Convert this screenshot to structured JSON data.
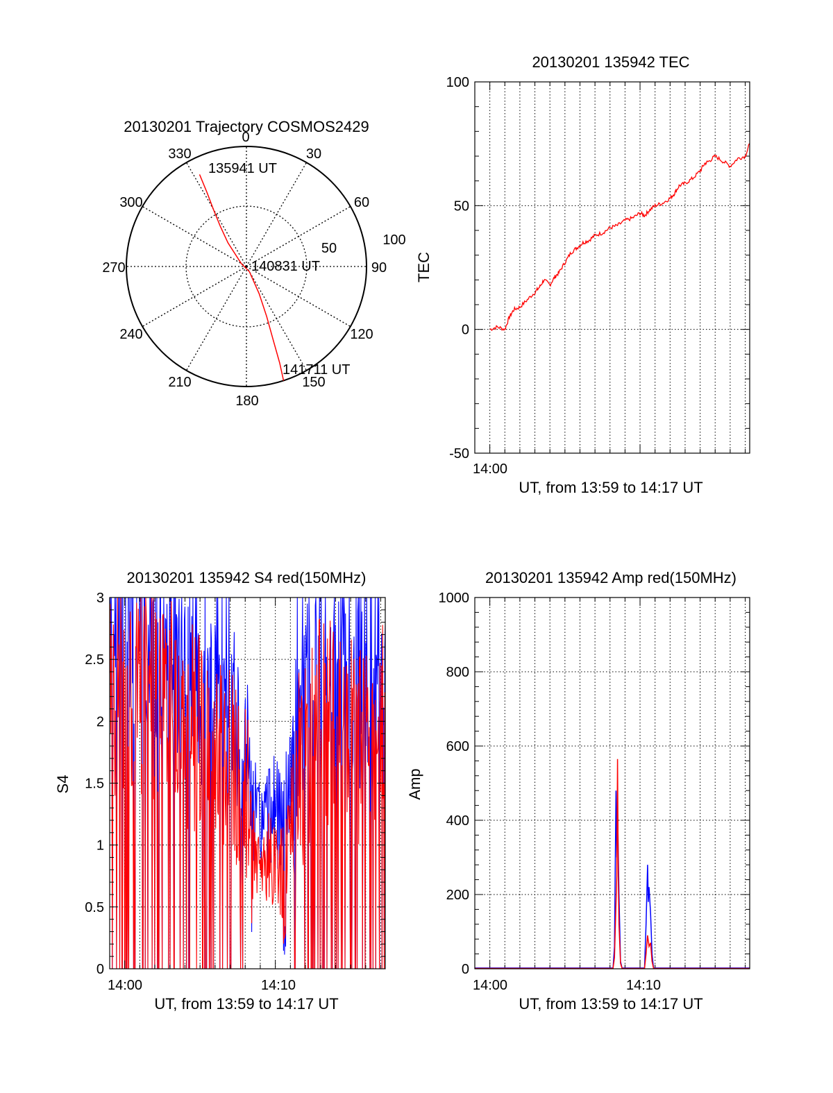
{
  "colors": {
    "red": "#ff0000",
    "blue": "#0000ff",
    "axis": "#000000",
    "grid": "#000000"
  },
  "chart_data": [
    {
      "id": "trajectory",
      "type": "scatter",
      "title": "20130201 Trajectory COSMOS2429",
      "coordinate_system": "polar (azimuth deg, elevation)",
      "azimuth_labels": [
        "0",
        "30",
        "60",
        "90",
        "120",
        "150",
        "180",
        "210",
        "240",
        "270",
        "300",
        "330"
      ],
      "radial_labels": [
        "50",
        "100"
      ],
      "annotations": [
        "135941 UT",
        "140831 UT",
        "141711 UT"
      ],
      "track": {
        "azimuth_deg": [
          333,
          332,
          330,
          327,
          322,
          300,
          150,
          155,
          158,
          160,
          161,
          162
        ],
        "zenith_dist": [
          86,
          70,
          55,
          40,
          25,
          5,
          5,
          25,
          45,
          65,
          85,
          100
        ],
        "color": "red"
      }
    },
    {
      "id": "tec",
      "type": "line",
      "title": "20130201 135942 TEC",
      "xlabel": "UT, from 13:59 to 14:17 UT",
      "ylabel": "TEC",
      "xlim_min": [
        -1,
        17.3
      ],
      "ylim": [
        -50,
        100
      ],
      "xtick_labels": [
        "14:00"
      ],
      "yticks": [
        -50,
        0,
        50,
        100
      ],
      "series": [
        {
          "color": "red",
          "x": [
            0,
            0.5,
            1,
            1.3,
            1.6,
            2,
            2.5,
            3,
            3.3,
            3.6,
            4,
            4.3,
            4.6,
            5,
            5.4,
            5.8,
            6.2,
            6.6,
            7,
            7.5,
            8,
            8.5,
            9,
            9.5,
            10,
            10.3,
            10.6,
            11,
            11.5,
            12,
            12.3,
            12.6,
            13,
            13.5,
            14,
            14.3,
            14.6,
            15,
            15.5,
            16,
            16.5,
            17,
            17.3
          ],
          "y": [
            0,
            1,
            0,
            5,
            8,
            9,
            12,
            15,
            17,
            20,
            18,
            21,
            23,
            27,
            31,
            33,
            35,
            36,
            38,
            39,
            41,
            42,
            44,
            45,
            47,
            46,
            48,
            50,
            51,
            53,
            55,
            58,
            59,
            61,
            64,
            67,
            68,
            70,
            68,
            66,
            69,
            70,
            75
          ]
        }
      ]
    },
    {
      "id": "s4",
      "type": "line",
      "title": "20130201 135942 S4 red(150MHz)",
      "xlabel": "UT, from 13:59 to 14:17 UT",
      "ylabel": "S4",
      "xlim_min": [
        -1,
        17.3
      ],
      "ylim": [
        0,
        3
      ],
      "xtick_labels": [
        "14:00",
        "14:10"
      ],
      "yticks": [
        0,
        0.5,
        1,
        1.5,
        2,
        2.5,
        3
      ],
      "envelope": {
        "x": [
          -1,
          0,
          1,
          2,
          3,
          4,
          5,
          6,
          7,
          8,
          8.5,
          9,
          9.5,
          10,
          10.5,
          11,
          12,
          13,
          14,
          15,
          16,
          17,
          17.3
        ],
        "y": [
          2.5,
          2.6,
          2.5,
          2.4,
          2.4,
          2.2,
          2.1,
          2.0,
          1.9,
          1.6,
          1.2,
          1.0,
          1.1,
          1.2,
          1.0,
          1.5,
          2.0,
          2.2,
          2.3,
          2.1,
          2.0,
          2.1,
          2.2
        ]
      },
      "series": [
        {
          "name": "",
          "color": "blue"
        },
        {
          "name": "",
          "color": "red"
        }
      ]
    },
    {
      "id": "amp",
      "type": "line",
      "title": "20130201 135942 Amp red(150MHz)",
      "xlabel": "UT, from 13:59 to 14:17 UT",
      "ylabel": "Amp",
      "xlim_min": [
        -1,
        17.3
      ],
      "ylim": [
        0,
        1000
      ],
      "xtick_labels": [
        "14:00",
        "14:10"
      ],
      "yticks": [
        0,
        200,
        400,
        600,
        800,
        1000
      ],
      "series": [
        {
          "color": "blue",
          "x": [
            -1,
            8.2,
            8.3,
            8.4,
            8.45,
            8.5,
            8.6,
            8.7,
            8.8,
            10.3,
            10.4,
            10.5,
            10.55,
            10.6,
            10.7,
            10.8,
            10.9,
            17.3
          ],
          "y": [
            2,
            2,
            60,
            480,
            300,
            440,
            200,
            20,
            2,
            2,
            120,
            280,
            180,
            220,
            150,
            40,
            2,
            2
          ]
        },
        {
          "color": "red",
          "x": [
            -1,
            8.2,
            8.3,
            8.45,
            8.5,
            8.55,
            8.6,
            8.7,
            8.8,
            10.3,
            10.4,
            10.5,
            10.6,
            10.7,
            10.8,
            10.9,
            17.3
          ],
          "y": [
            1,
            1,
            30,
            250,
            565,
            240,
            120,
            15,
            1,
            1,
            40,
            90,
            60,
            70,
            20,
            1,
            1
          ]
        }
      ]
    }
  ]
}
